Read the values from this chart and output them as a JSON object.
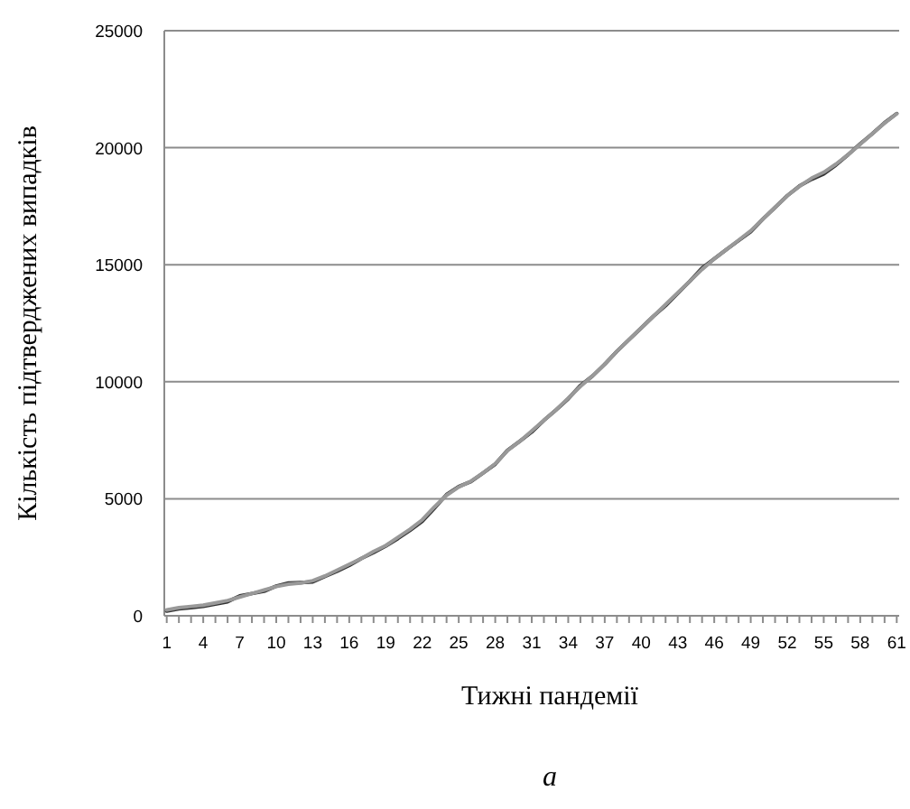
{
  "chart_data": {
    "type": "line",
    "xlabel": "Тижні пандемії",
    "ylabel": "Кількість підтверджених випадків",
    "annotations": [
      "a"
    ],
    "categories": [
      "1",
      null,
      null,
      "4",
      null,
      null,
      "7",
      null,
      null,
      "10",
      null,
      null,
      "13",
      null,
      null,
      "16",
      null,
      null,
      "19",
      null,
      null,
      "22",
      null,
      null,
      "25",
      null,
      null,
      "28",
      null,
      null,
      "31",
      null,
      null,
      "34",
      null,
      null,
      "37",
      null,
      null,
      "40",
      null,
      null,
      "43",
      null,
      null,
      "46",
      null,
      null,
      "49",
      null,
      null,
      "52",
      null,
      null,
      "55",
      null,
      null,
      "58",
      null,
      null,
      "61"
    ],
    "series": [
      {
        "color": "#333333",
        "values": [
          200,
          300,
          350,
          400,
          500,
          600,
          850,
          950,
          1050,
          1270,
          1400,
          1420,
          1450,
          1680,
          1900,
          2150,
          2450,
          2700,
          2980,
          3300,
          3650,
          4040,
          4600,
          5180,
          5520,
          5730,
          6100,
          6480,
          7070,
          7450,
          7850,
          8350,
          8800,
          9270,
          9840,
          10250,
          10750,
          11300,
          11800,
          12300,
          12800,
          13250,
          13780,
          14300,
          14860,
          15250,
          15650,
          16030,
          16410,
          16950,
          17450,
          17950,
          18360,
          18650,
          18880,
          19260,
          19700,
          20170,
          20600,
          21070,
          21460
        ]
      },
      {
        "color": "#999999",
        "values": [
          250,
          350,
          400,
          450,
          550,
          650,
          800,
          950,
          1100,
          1250,
          1350,
          1400,
          1500,
          1700,
          1950,
          2200,
          2450,
          2750,
          3000,
          3350,
          3700,
          4100,
          4650,
          5150,
          5500,
          5750,
          6100,
          6500,
          7050,
          7450,
          7900,
          8350,
          8800,
          9300,
          9800,
          10250,
          10750,
          11300,
          11800,
          12300,
          12800,
          13300,
          13800,
          14300,
          14800,
          15250,
          15650,
          16050,
          16450,
          16950,
          17450,
          17950,
          18350,
          18700,
          18950,
          19300,
          19700,
          20150,
          20600,
          21050,
          21450
        ]
      }
    ],
    "ylim": [
      0,
      25000
    ],
    "yticks": [
      0,
      5000,
      10000,
      15000,
      20000,
      25000
    ],
    "grid": "y",
    "line_style": "solid"
  }
}
